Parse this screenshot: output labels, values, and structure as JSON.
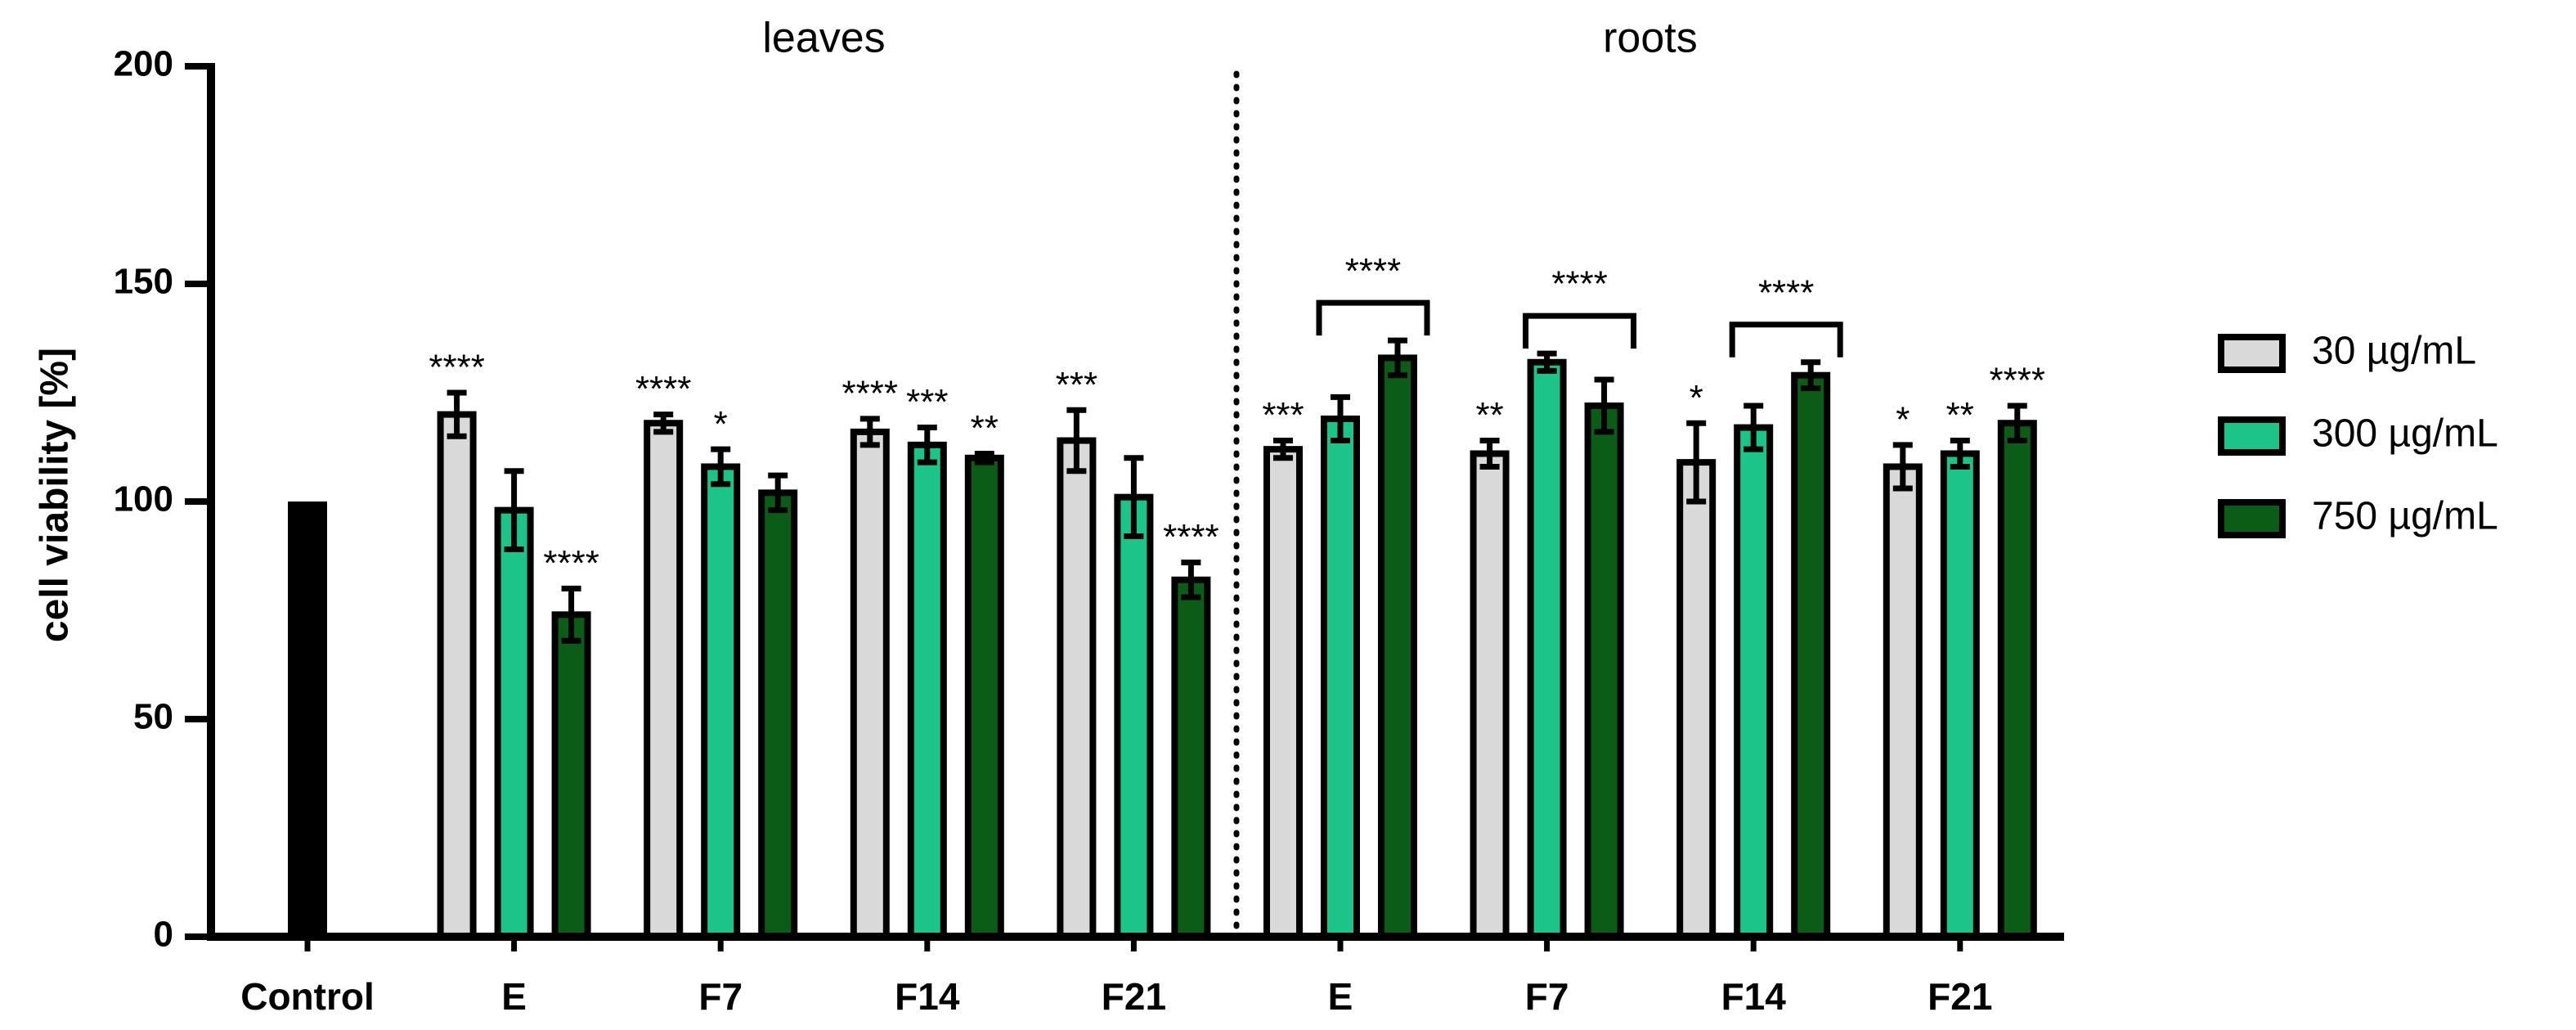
{
  "chart_data": {
    "type": "bar",
    "ylabel": "cell viability [%]",
    "group_labels": [
      "leaves",
      "roots"
    ],
    "categories": [
      "Control",
      "E",
      "F7",
      "F14",
      "F21",
      "E",
      "F7",
      "F14",
      "F21"
    ],
    "control_value": 100,
    "control_color": "#000000",
    "series": [
      {
        "name": "30 µg/mL",
        "color": "#d9d9d9",
        "values": [
          null,
          120,
          118,
          116,
          114,
          112,
          111,
          109,
          108
        ],
        "errors": [
          null,
          5,
          2,
          3,
          7,
          2,
          3,
          9,
          5
        ],
        "annotations": [
          null,
          "****",
          "****",
          "****",
          "***",
          "***",
          "**",
          "*",
          "*"
        ]
      },
      {
        "name": "300 µg/mL",
        "color": "#1cc48a",
        "values": [
          null,
          98,
          108,
          113,
          101,
          119,
          132,
          117,
          111
        ],
        "errors": [
          null,
          9,
          4,
          4,
          9,
          5,
          2,
          5,
          3
        ],
        "annotations": [
          null,
          null,
          "*",
          "***",
          null,
          null,
          null,
          null,
          "**"
        ]
      },
      {
        "name": "750 µg/mL",
        "color": "#0b5c16",
        "values": [
          null,
          74,
          102,
          110,
          82,
          133,
          122,
          129,
          118
        ],
        "errors": [
          null,
          6,
          4,
          1,
          4,
          4,
          6,
          3,
          4
        ],
        "annotations": [
          null,
          "****",
          null,
          "**",
          "****",
          null,
          null,
          null,
          "****"
        ]
      }
    ],
    "bracket_labels": [
      null,
      null,
      null,
      null,
      null,
      "****",
      "****",
      "****",
      null
    ],
    "ylim": [
      0,
      200
    ],
    "yticks": [
      0,
      50,
      100,
      150,
      200
    ],
    "legend": "right"
  }
}
